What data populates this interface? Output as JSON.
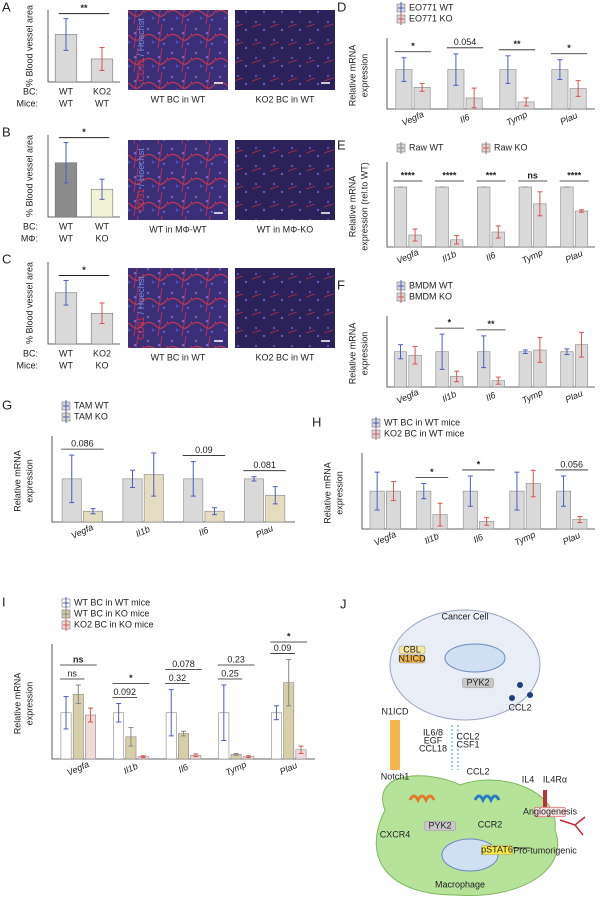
{
  "chart_data": [
    {
      "type": "bar",
      "panel": "A",
      "ylabel": "% Blood vessel area",
      "x_rows": [
        {
          "name": "BC:",
          "labels": [
            "WT",
            "KO2"
          ]
        },
        {
          "name": "Mice:",
          "labels": [
            "WT",
            "WT"
          ]
        }
      ],
      "values": [
        3.3,
        1.6
      ],
      "errors": [
        1.1,
        0.8
      ],
      "colors": [
        "#d9d9d9",
        "#d9d9d9"
      ],
      "error_colors": [
        "#4a5fc1",
        "#d9534f"
      ],
      "ylim": [
        0,
        5
      ],
      "sig": "**"
    },
    {
      "type": "bar",
      "panel": "B",
      "ylabel": "% Blood vessel area",
      "x_rows": [
        {
          "name": "BC:",
          "labels": [
            "WT",
            "WT"
          ]
        },
        {
          "name": "MΦ:",
          "labels": [
            "WT",
            "KO"
          ]
        }
      ],
      "values": [
        4.3,
        2.2
      ],
      "errors": [
        1.6,
        0.8
      ],
      "colors": [
        "#8c8c8c",
        "#f1f3d6"
      ],
      "error_colors": [
        "#4a5fc1",
        "#4a5fc1"
      ],
      "ylim": [
        0,
        6.5
      ],
      "sig": "*"
    },
    {
      "type": "bar",
      "panel": "C",
      "ylabel": "% Blood vessel area",
      "x_rows": [
        {
          "name": "BC:",
          "labels": [
            "WT",
            "KO2"
          ]
        },
        {
          "name": "Mice:",
          "labels": [
            "WT",
            "KO"
          ]
        }
      ],
      "values": [
        2.5,
        1.5
      ],
      "errors": [
        0.6,
        0.5
      ],
      "colors": [
        "#d9d9d9",
        "#d9d9d9"
      ],
      "error_colors": [
        "#4a5fc1",
        "#d9534f"
      ],
      "ylim": [
        0,
        4
      ],
      "sig": "*"
    },
    {
      "type": "grouped",
      "panel": "D",
      "ylabel": [
        "Relative mRNA",
        "expression"
      ],
      "legend_direction": "vertical",
      "categories": [
        "Vegfa",
        "Il6",
        "Tymp",
        "Plau"
      ],
      "series": [
        {
          "name": "EO771 WT",
          "color": "#d9d9d9",
          "error_color": "#4a5fc1",
          "values": [
            1.0,
            1.0,
            1.0,
            1.0
          ],
          "errors": [
            0.3,
            0.4,
            0.35,
            0.25
          ]
        },
        {
          "name": "EO771 KO",
          "color": "#d9d9d9",
          "error_color": "#d9534f",
          "values": [
            0.55,
            0.28,
            0.18,
            0.52
          ],
          "errors": [
            0.1,
            0.25,
            0.1,
            0.2
          ]
        }
      ],
      "ylim": [
        0,
        1.7
      ],
      "sig": [
        "*",
        "0.054",
        "**",
        "*"
      ]
    },
    {
      "type": "grouped",
      "panel": "E",
      "ylabel": [
        "Relative mRNA",
        "expression (rel.to WT)"
      ],
      "legend_direction": "horizontal",
      "categories": [
        "Vegfa",
        "Il1b",
        "Il6",
        "Tymp",
        "Plau"
      ],
      "series": [
        {
          "name": "Raw WT",
          "color": "#d9d9d9",
          "error_color": "#888888",
          "values": [
            1.0,
            1.0,
            1.0,
            1.0,
            1.0
          ],
          "errors": [
            0,
            0,
            0,
            0,
            0
          ]
        },
        {
          "name": "Raw KO",
          "color": "#d9d9d9",
          "error_color": "#d9534f",
          "values": [
            0.2,
            0.12,
            0.25,
            0.72,
            0.6
          ],
          "errors": [
            0.1,
            0.07,
            0.1,
            0.2,
            0.02
          ]
        }
      ],
      "ylim": [
        0,
        1.35
      ],
      "sig": [
        "****",
        "****",
        "***",
        "ns",
        "****"
      ]
    },
    {
      "type": "grouped",
      "panel": "F",
      "ylabel": [
        "Relative mRNA",
        "expression"
      ],
      "legend_direction": "vertical",
      "categories": [
        "Vegfa",
        "Il1b",
        "Il6",
        "Tymp",
        "Plau"
      ],
      "series": [
        {
          "name": "BMDM WT",
          "color": "#d9d9d9",
          "error_color": "#4a5fc1",
          "values": [
            1.0,
            1.0,
            1.0,
            1.0,
            1.0
          ],
          "errors": [
            0.2,
            0.5,
            0.45,
            0.05,
            0.08
          ]
        },
        {
          "name": "BMDM KO",
          "color": "#d9d9d9",
          "error_color": "#d9534f",
          "values": [
            0.9,
            0.3,
            0.18,
            1.05,
            1.2
          ],
          "errors": [
            0.25,
            0.15,
            0.1,
            0.35,
            0.35
          ]
        }
      ],
      "ylim": [
        0,
        1.9
      ],
      "sig": [
        null,
        "*",
        "**",
        null,
        null
      ]
    },
    {
      "type": "grouped",
      "panel": "G",
      "ylabel": [
        "Relative mRNA",
        "expression"
      ],
      "legend_direction": "vertical",
      "categories": [
        "Vegfa",
        "Il1b",
        "Il6",
        "Plau"
      ],
      "series": [
        {
          "name": "TAM WT",
          "color": "#d9d9d9",
          "error_color": "#4a5fc1",
          "values": [
            1.0,
            1.0,
            1.0,
            1.0
          ],
          "errors": [
            0.55,
            0.2,
            0.4,
            0.05
          ]
        },
        {
          "name": "TAM KO",
          "color": "#e3dcc0",
          "error_color": "#4a5fc1",
          "values": [
            0.25,
            1.1,
            0.25,
            0.62
          ],
          "errors": [
            0.06,
            0.5,
            0.08,
            0.2
          ]
        }
      ],
      "ylim": [
        0,
        1.9
      ],
      "sig": [
        "0.086",
        null,
        "0.09",
        "0.081"
      ]
    },
    {
      "type": "grouped",
      "panel": "H",
      "ylabel": [
        "Relative mRNA",
        "expression"
      ],
      "legend_direction": "vertical",
      "categories": [
        "Vegfa",
        "Il1b",
        "Il6",
        "Tymp",
        "Plau"
      ],
      "series": [
        {
          "name": "WT BC in WT mice",
          "color": "#d9d9d9",
          "error_color": "#4a5fc1",
          "values": [
            1.0,
            1.0,
            1.0,
            1.0,
            1.0
          ],
          "errors": [
            0.5,
            0.2,
            0.4,
            0.5,
            0.4
          ]
        },
        {
          "name": "KO2 BC in WT mice",
          "color": "#d9d9d9",
          "error_color": "#d9534f",
          "values": [
            1.0,
            0.38,
            0.2,
            1.2,
            0.25
          ],
          "errors": [
            0.25,
            0.3,
            0.1,
            0.35,
            0.08
          ]
        }
      ],
      "ylim": [
        0,
        1.9
      ],
      "sig": [
        null,
        "*",
        "*",
        null,
        "0.056"
      ]
    },
    {
      "type": "grouped",
      "panel": "I",
      "ylabel": [
        "Relative mRNA",
        "expression"
      ],
      "legend_direction": "vertical",
      "categories": [
        "Vegfa",
        "Il1b",
        "Il6",
        "Tymp",
        "Plau"
      ],
      "series": [
        {
          "name": "WT BC in WT mice",
          "color": "#ffffff",
          "error_color": "#4a5fc1",
          "values": [
            1.0,
            1.0,
            1.0,
            1.0,
            1.0
          ],
          "errors": [
            0.35,
            0.2,
            0.5,
            0.6,
            0.15
          ]
        },
        {
          "name": "WT BC in KO mice",
          "color": "#d6cfa8",
          "error_color": "#888888",
          "values": [
            1.4,
            0.48,
            0.55,
            0.1,
            1.65
          ],
          "errors": [
            0.2,
            0.2,
            0.05,
            0.02,
            0.5
          ]
        },
        {
          "name": "KO2 BC in KO mice",
          "color": "#f2dada",
          "error_color": "#d9534f",
          "values": [
            0.95,
            0.05,
            0.08,
            0.05,
            0.2
          ],
          "errors": [
            0.15,
            0.02,
            0.03,
            0.02,
            0.08
          ]
        }
      ],
      "ylim": [
        0,
        2.4
      ],
      "sig": [
        "ns",
        "*",
        "0.078",
        "0.23",
        "*"
      ],
      "sig2": [
        "ns",
        "0.092",
        "0.32",
        "0.25",
        "0.09"
      ]
    }
  ],
  "micrographs": [
    {
      "stain_red": "CD31",
      "stain_blue": " / Hoechst",
      "captions": [
        "WT BC in WT",
        "KO2 BC in WT"
      ]
    },
    {
      "stain_red": "CD31",
      "stain_blue": " / Hoechst",
      "captions": [
        "WT in MΦ-WT",
        "WT in MΦ-KO"
      ]
    },
    {
      "stain_red": "CD31",
      "stain_blue": " / Hoechst",
      "captions": [
        "WT BC in WT",
        "KO2 BC in WT"
      ]
    }
  ],
  "diagram": {
    "panel": "J",
    "labels": [
      "Cancer Cell",
      "CBL",
      "N1ICD",
      "PYK2",
      "CCL2",
      "Notch1",
      "N1ICD",
      "IL6/8",
      "EGF",
      "CCL18",
      "CCL2",
      "CSF1",
      "CCL2",
      "IL4",
      "IL4Rα",
      "CXCR4",
      "CCR2",
      "PYK2",
      "pSTAT6",
      "Pro-tumorigenic",
      "Angiogenesis",
      "Macrophage"
    ]
  }
}
